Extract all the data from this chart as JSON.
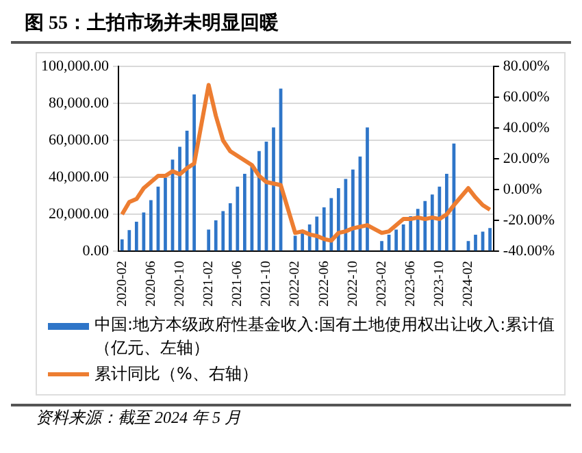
{
  "chart_data": {
    "type": "bar",
    "title": "图 55：土拍市场并未明显回暖",
    "categories": [
      "2020-02",
      null,
      null,
      null,
      "2020-06",
      null,
      null,
      null,
      "2020-10",
      null,
      null,
      null,
      "2021-02",
      null,
      null,
      null,
      "2021-06",
      null,
      null,
      null,
      "2021-10",
      null,
      null,
      null,
      "2022-02",
      null,
      null,
      null,
      "2022-06",
      null,
      null,
      null,
      "2022-10",
      null,
      null,
      null,
      "2023-02",
      null,
      null,
      null,
      "2023-06",
      null,
      null,
      null,
      "2023-10",
      null,
      null,
      null,
      "2024-02",
      null,
      null,
      null
    ],
    "series": [
      {
        "name": "中国:地方本级政府性基金收入:国有土地使用权出让收入:累计值（亿元、左轴）",
        "color": "#2e75c8",
        "values": [
          6500,
          11500,
          16000,
          21000,
          27700,
          35000,
          39800,
          49600,
          56600,
          65300,
          84900,
          null,
          11800,
          16800,
          21800,
          26000,
          35000,
          42000,
          47000,
          54300,
          59400,
          67000,
          88000,
          null,
          8500,
          11500,
          14600,
          18800,
          23800,
          28800,
          34200,
          39200,
          44300,
          51300,
          67000,
          null,
          5600,
          9000,
          11800,
          14600,
          19000,
          23000,
          27200,
          30800,
          35000,
          42000,
          58300,
          null,
          5600,
          9000,
          10700,
          12600
        ]
      },
      {
        "name": "累计同比（%、右轴）",
        "type": "line",
        "axis": "y2",
        "color": "#ed7d31",
        "values": [
          -16,
          -8,
          -6,
          1,
          5,
          9,
          9,
          12,
          10,
          14,
          17,
          null,
          68,
          48,
          32,
          25,
          22,
          19,
          16,
          9,
          5,
          4,
          3,
          null,
          -28,
          -27,
          -29,
          -30,
          -32,
          -33,
          -28,
          -27,
          -25,
          -24,
          -23,
          null,
          -28,
          -27,
          -23,
          -19,
          -19,
          -18,
          -19,
          -18,
          -19,
          -16,
          -10,
          null,
          1,
          -5,
          -10,
          -13
        ]
      }
    ],
    "ylim": [
      0,
      100000
    ],
    "yticks": [
      {
        "value": 0,
        "label": "0.00"
      },
      {
        "value": 20000,
        "label": "20,000.00"
      },
      {
        "value": 40000,
        "label": "40,000.00"
      },
      {
        "value": 60000,
        "label": "60,000.00"
      },
      {
        "value": 80000,
        "label": "80,000.00"
      },
      {
        "value": 100000,
        "label": "100,000.00"
      }
    ],
    "y2lim": [
      -40,
      80
    ],
    "y2ticks": [
      {
        "value": -40,
        "label": "-40.00%"
      },
      {
        "value": -20,
        "label": "-20.00%"
      },
      {
        "value": 0,
        "label": "0.00%"
      },
      {
        "value": 20,
        "label": "20.00%"
      },
      {
        "value": 40,
        "label": "40.00%"
      },
      {
        "value": 60,
        "label": "60.00%"
      },
      {
        "value": 80,
        "label": "80.00%"
      }
    ],
    "grid": "y",
    "legend": "bottom",
    "marker": "none",
    "line_style": "solid",
    "annotations": [
      "资料来源：截至 2024 年 5 月"
    ]
  }
}
